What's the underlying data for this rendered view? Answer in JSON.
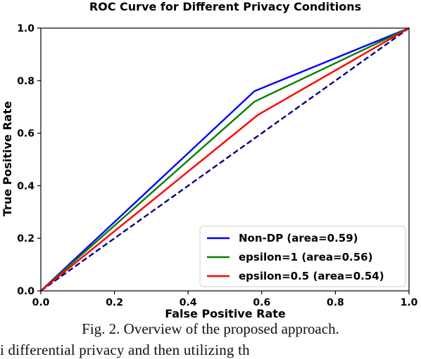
{
  "chart_data": {
    "type": "line",
    "title": "ROC Curve for Different Privacy Conditions",
    "xlabel": "False Positive Rate",
    "ylabel": "True Positive Rate",
    "xlim": [
      0.0,
      1.0
    ],
    "ylim": [
      0.0,
      1.0
    ],
    "xticks": [
      "0.0",
      "0.2",
      "0.4",
      "0.6",
      "0.8",
      "1.0"
    ],
    "yticks": [
      "0.0",
      "0.2",
      "0.4",
      "0.6",
      "0.8",
      "1.0"
    ],
    "grid": false,
    "legend_position": "lower-right",
    "series": [
      {
        "name": "Non-DP (area=0.59)",
        "color": "#0000ff",
        "style": "solid",
        "x": [
          0.0,
          0.58,
          1.0
        ],
        "y": [
          0.0,
          0.76,
          1.0
        ]
      },
      {
        "name": "epsilon=1 (area=0.56)",
        "color": "#008000",
        "style": "solid",
        "x": [
          0.0,
          0.58,
          1.0
        ],
        "y": [
          0.0,
          0.72,
          1.0
        ]
      },
      {
        "name": "epsilon=0.5 (area=0.54)",
        "color": "#ff0000",
        "style": "solid",
        "x": [
          0.0,
          0.59,
          1.0
        ],
        "y": [
          0.0,
          0.67,
          1.0
        ]
      }
    ],
    "reference_line": {
      "color": "#000080",
      "style": "dashed",
      "x": [
        0.0,
        1.0
      ],
      "y": [
        0.0,
        1.0
      ]
    }
  },
  "caption": "Fig. 2.  Overview of the proposed approach.",
  "body_text_fragment": "i   differential privacy and then utilizing th"
}
